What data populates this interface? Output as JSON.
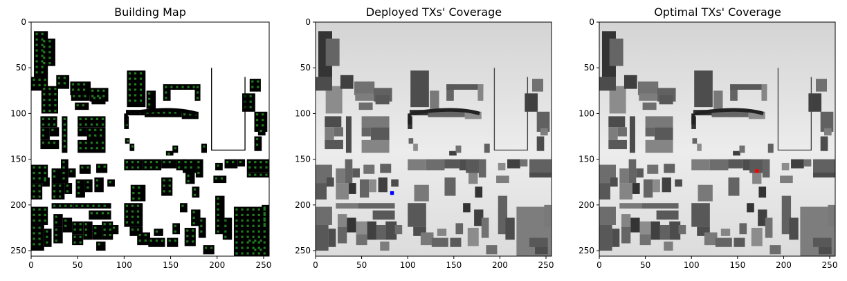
{
  "figure_background": "#ffffff",
  "chart_data": [
    {
      "type": "heatmap",
      "title": "Building Map",
      "xlabel": "",
      "ylabel": "",
      "xlim": [
        0,
        256
      ],
      "ylim": [
        256,
        0
      ],
      "xticks": [
        0,
        50,
        100,
        150,
        200,
        250
      ],
      "yticks": [
        0,
        50,
        100,
        150,
        200,
        250
      ],
      "colormap": "building (black) / free space (white) / candidate sites (green)",
      "colors": {
        "background": "#ffffff",
        "building": "#000000",
        "candidate": "#1f7a1f"
      }
    },
    {
      "type": "heatmap",
      "title": "Deployed TXs' Coverage",
      "xlabel": "",
      "ylabel": "",
      "xlim": [
        0,
        256
      ],
      "ylim": [
        256,
        0
      ],
      "xticks": [
        0,
        50,
        100,
        150,
        200,
        250
      ],
      "yticks": [
        0,
        50,
        100,
        150,
        200,
        250
      ],
      "colormap": "gray",
      "colors": {
        "background": "#e6e6e6",
        "building": "#555555",
        "marker": "#0000ff"
      },
      "tx_markers": [
        {
          "x": 83,
          "y": 187,
          "color": "#0000ff"
        }
      ]
    },
    {
      "type": "heatmap",
      "title": "Optimal TXs' Coverage",
      "xlabel": "",
      "ylabel": "",
      "xlim": [
        0,
        256
      ],
      "ylim": [
        256,
        0
      ],
      "xticks": [
        0,
        50,
        100,
        150,
        200,
        250
      ],
      "yticks": [
        0,
        50,
        100,
        150,
        200,
        250
      ],
      "colormap": "gray",
      "colors": {
        "background": "#e6e6e6",
        "building": "#555555",
        "marker": "#ff0000"
      },
      "tx_markers": [
        {
          "x": 171,
          "y": 163,
          "color": "#ff0000"
        }
      ]
    }
  ],
  "buildings": [
    [
      3,
      10,
      15,
      50
    ],
    [
      11,
      18,
      15,
      30
    ],
    [
      11,
      70,
      18,
      30
    ],
    [
      27,
      58,
      14,
      15
    ],
    [
      42,
      65,
      22,
      15
    ],
    [
      63,
      72,
      20,
      15
    ],
    [
      0,
      60,
      18,
      15
    ],
    [
      43,
      78,
      20,
      8
    ],
    [
      47,
      88,
      15,
      8
    ],
    [
      65,
      80,
      15,
      10
    ],
    [
      103,
      53,
      20,
      40
    ],
    [
      124,
      75,
      10,
      20
    ],
    [
      142,
      68,
      8,
      18
    ],
    [
      142,
      68,
      40,
      6
    ],
    [
      176,
      68,
      6,
      18
    ],
    [
      102,
      96,
      20,
      6
    ],
    [
      122,
      96,
      40,
      8
    ],
    [
      162,
      98,
      18,
      8
    ],
    [
      227,
      78,
      14,
      20
    ],
    [
      235,
      62,
      12,
      14
    ],
    [
      240,
      98,
      14,
      22
    ],
    [
      10,
      103,
      18,
      12
    ],
    [
      10,
      115,
      10,
      14
    ],
    [
      20,
      115,
      10,
      10
    ],
    [
      10,
      129,
      20,
      10
    ],
    [
      33,
      103,
      6,
      40
    ],
    [
      50,
      103,
      30,
      12
    ],
    [
      50,
      115,
      10,
      10
    ],
    [
      60,
      115,
      20,
      16
    ],
    [
      50,
      129,
      30,
      14
    ],
    [
      100,
      103,
      5,
      14
    ],
    [
      101,
      127,
      5,
      6
    ],
    [
      106,
      133,
      5,
      8
    ],
    [
      145,
      141,
      8,
      5
    ],
    [
      152,
      135,
      6,
      8
    ],
    [
      183,
      133,
      6,
      10
    ],
    [
      240,
      125,
      8,
      16
    ],
    [
      244,
      116,
      8,
      8
    ],
    [
      0,
      156,
      18,
      20
    ],
    [
      0,
      176,
      12,
      18
    ],
    [
      12,
      170,
      8,
      10
    ],
    [
      22,
      160,
      10,
      16
    ],
    [
      32,
      150,
      8,
      26
    ],
    [
      40,
      160,
      8,
      10
    ],
    [
      22,
      176,
      14,
      18
    ],
    [
      36,
      176,
      8,
      12
    ],
    [
      48,
      172,
      10,
      20
    ],
    [
      58,
      172,
      8,
      14
    ],
    [
      68,
      170,
      10,
      16
    ],
    [
      52,
      156,
      12,
      10
    ],
    [
      70,
      155,
      12,
      10
    ],
    [
      82,
      172,
      8,
      8
    ],
    [
      100,
      150,
      20,
      12
    ],
    [
      120,
      150,
      20,
      12
    ],
    [
      140,
      150,
      16,
      10
    ],
    [
      156,
      150,
      10,
      12
    ],
    [
      107,
      178,
      16,
      18
    ],
    [
      140,
      170,
      12,
      20
    ],
    [
      163,
      150,
      15,
      15
    ],
    [
      166,
      165,
      10,
      12
    ],
    [
      173,
      180,
      8,
      12
    ],
    [
      177,
      150,
      8,
      20
    ],
    [
      198,
      154,
      8,
      8
    ],
    [
      208,
      150,
      14,
      10
    ],
    [
      222,
      150,
      8,
      8
    ],
    [
      232,
      150,
      24,
      14
    ],
    [
      232,
      164,
      24,
      6
    ],
    [
      196,
      168,
      14,
      8
    ],
    [
      0,
      202,
      18,
      20
    ],
    [
      0,
      222,
      14,
      28
    ],
    [
      14,
      226,
      8,
      20
    ],
    [
      22,
      198,
      24,
      6
    ],
    [
      46,
      198,
      40,
      6
    ],
    [
      62,
      206,
      24,
      10
    ],
    [
      24,
      210,
      10,
      14
    ],
    [
      34,
      214,
      10,
      16
    ],
    [
      24,
      224,
      10,
      18
    ],
    [
      44,
      218,
      12,
      14
    ],
    [
      56,
      218,
      10,
      20
    ],
    [
      44,
      232,
      12,
      12
    ],
    [
      66,
      222,
      10,
      16
    ],
    [
      76,
      218,
      12,
      20
    ],
    [
      70,
      240,
      10,
      10
    ],
    [
      86,
      222,
      8,
      10
    ],
    [
      100,
      198,
      20,
      26
    ],
    [
      106,
      224,
      14,
      10
    ],
    [
      114,
      230,
      14,
      14
    ],
    [
      126,
      236,
      18,
      10
    ],
    [
      146,
      236,
      12,
      10
    ],
    [
      132,
      226,
      10,
      8
    ],
    [
      160,
      198,
      8,
      10
    ],
    [
      152,
      220,
      8,
      12
    ],
    [
      165,
      225,
      12,
      20
    ],
    [
      172,
      205,
      10,
      18
    ],
    [
      180,
      214,
      8,
      22
    ],
    [
      198,
      190,
      10,
      42
    ],
    [
      206,
      214,
      10,
      24
    ],
    [
      218,
      202,
      52,
      56
    ],
    [
      185,
      244,
      12,
      10
    ],
    [
      232,
      236,
      20,
      10
    ],
    [
      238,
      246,
      14,
      8
    ],
    [
      248,
      200,
      8,
      24
    ]
  ]
}
